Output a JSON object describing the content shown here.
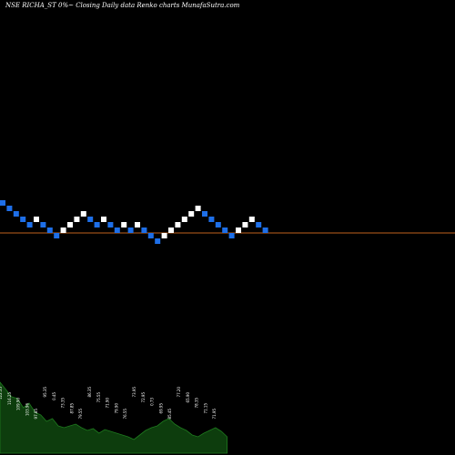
{
  "chart_data": {
    "type": "renko",
    "title": "NSE RICHA_ST 0%~  Closing Daily data  Renko  charts MunafaSutra.com",
    "colors": {
      "background": "#000000",
      "up_brick": "#ffffff",
      "down_brick": "#1e6fe8",
      "reference_line": "#c0621e",
      "volume_area": "#0d3d0d",
      "volume_outline": "#1e7a1e"
    },
    "bricks": [
      {
        "level": 10,
        "dir": "down"
      },
      {
        "level": 9,
        "dir": "down"
      },
      {
        "level": 8,
        "dir": "down"
      },
      {
        "level": 7,
        "dir": "down"
      },
      {
        "level": 6,
        "dir": "down"
      },
      {
        "level": 7,
        "dir": "up"
      },
      {
        "level": 6,
        "dir": "down"
      },
      {
        "level": 5,
        "dir": "down"
      },
      {
        "level": 4,
        "dir": "down"
      },
      {
        "level": 5,
        "dir": "up"
      },
      {
        "level": 6,
        "dir": "up"
      },
      {
        "level": 7,
        "dir": "up"
      },
      {
        "level": 8,
        "dir": "up"
      },
      {
        "level": 7,
        "dir": "down"
      },
      {
        "level": 6,
        "dir": "down"
      },
      {
        "level": 7,
        "dir": "up"
      },
      {
        "level": 6,
        "dir": "down"
      },
      {
        "level": 5,
        "dir": "down"
      },
      {
        "level": 6,
        "dir": "up"
      },
      {
        "level": 5,
        "dir": "down"
      },
      {
        "level": 6,
        "dir": "up"
      },
      {
        "level": 5,
        "dir": "down"
      },
      {
        "level": 4,
        "dir": "down"
      },
      {
        "level": 3,
        "dir": "down"
      },
      {
        "level": 4,
        "dir": "up"
      },
      {
        "level": 5,
        "dir": "up"
      },
      {
        "level": 6,
        "dir": "up"
      },
      {
        "level": 7,
        "dir": "up"
      },
      {
        "level": 8,
        "dir": "up"
      },
      {
        "level": 9,
        "dir": "up"
      },
      {
        "level": 8,
        "dir": "down"
      },
      {
        "level": 7,
        "dir": "down"
      },
      {
        "level": 6,
        "dir": "down"
      },
      {
        "level": 5,
        "dir": "down"
      },
      {
        "level": 4,
        "dir": "down"
      },
      {
        "level": 5,
        "dir": "up"
      },
      {
        "level": 6,
        "dir": "up"
      },
      {
        "level": 7,
        "dir": "up"
      },
      {
        "level": 6,
        "dir": "down"
      },
      {
        "level": 5,
        "dir": "down"
      }
    ],
    "reference_level": 4.5,
    "volume": [
      78,
      70,
      62,
      60,
      50,
      55,
      45,
      42,
      35,
      38,
      30,
      28,
      30,
      32,
      28,
      25,
      27,
      22,
      26,
      24,
      22,
      20,
      18,
      15,
      20,
      25,
      28,
      30,
      35,
      38,
      32,
      28,
      25,
      20,
      18,
      22,
      25,
      28,
      24,
      18
    ],
    "volume_labels": [
      "122.55",
      "116.25",
      "109.90",
      "103.96",
      "97.85",
      "95.35",
      "0.45",
      "73.35",
      "87.85",
      "79.55",
      "86.35",
      "75.55",
      "71.90",
      "79.90",
      "76.55",
      "73.95",
      "72.95",
      "0.73",
      "69.95",
      "85.45",
      "77.20",
      "65.90",
      "78.35",
      "71.15",
      "71.95"
    ]
  }
}
